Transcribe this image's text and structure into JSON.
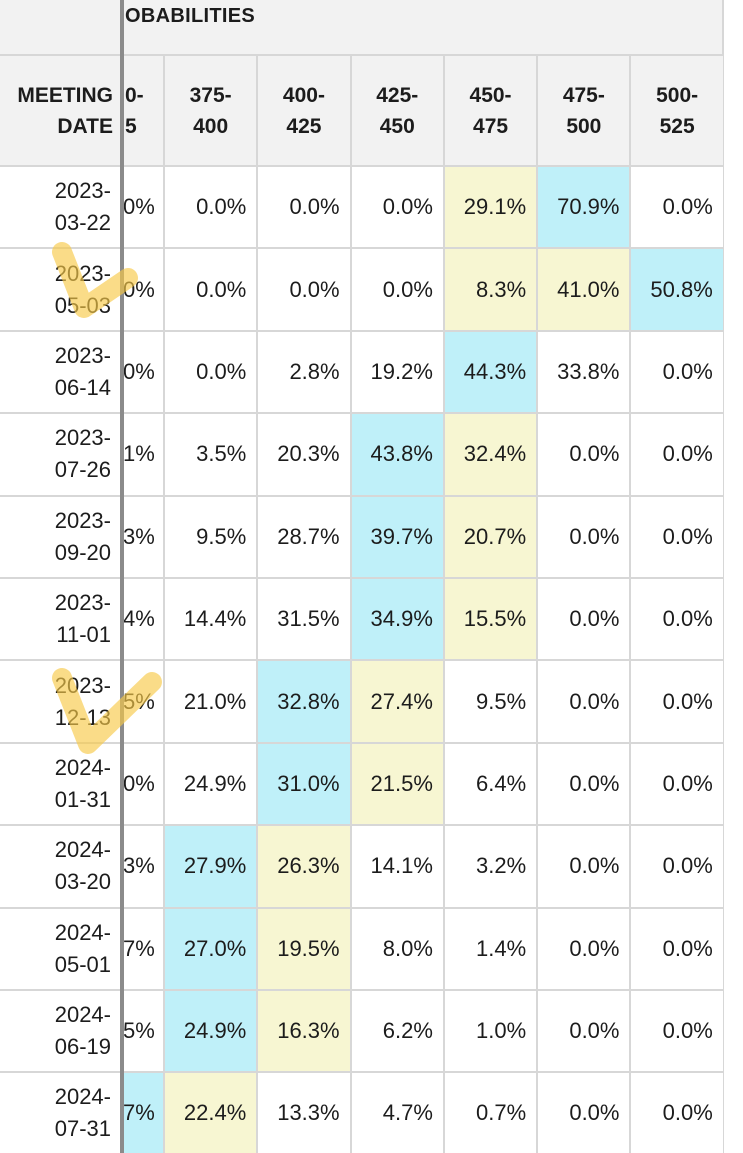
{
  "header": {
    "title_fragment": "OBABILITIES",
    "date_column": [
      "MEETING",
      "DATE"
    ],
    "clipped_column": [
      "0-",
      "5"
    ],
    "rate_columns": [
      [
        "375-",
        "400"
      ],
      [
        "400-",
        "425"
      ],
      [
        "425-",
        "450"
      ],
      [
        "450-",
        "475"
      ],
      [
        "475-",
        "500"
      ],
      [
        "500-",
        "525"
      ]
    ]
  },
  "rows": [
    {
      "date": [
        "2023-",
        "03-22"
      ],
      "clipped": "0%",
      "values": [
        "0.0%",
        "0.0%",
        "0.0%",
        "29.1%",
        "70.9%",
        "0.0%"
      ],
      "highlight": [
        "",
        "",
        "",
        "yellow",
        "blue",
        ""
      ],
      "clip_highlight": ""
    },
    {
      "date": [
        "2023-",
        "05-03"
      ],
      "clipped": "0%",
      "values": [
        "0.0%",
        "0.0%",
        "0.0%",
        "8.3%",
        "41.0%",
        "50.8%"
      ],
      "highlight": [
        "",
        "",
        "",
        "yellow",
        "yellow",
        "blue"
      ],
      "clip_highlight": ""
    },
    {
      "date": [
        "2023-",
        "06-14"
      ],
      "clipped": "0%",
      "values": [
        "0.0%",
        "2.8%",
        "19.2%",
        "44.3%",
        "33.8%",
        "0.0%"
      ],
      "highlight": [
        "",
        "",
        "",
        "blue",
        "",
        ""
      ],
      "clip_highlight": ""
    },
    {
      "date": [
        "2023-",
        "07-26"
      ],
      "clipped": "1%",
      "values": [
        "3.5%",
        "20.3%",
        "43.8%",
        "32.4%",
        "0.0%",
        "0.0%"
      ],
      "highlight": [
        "",
        "",
        "blue",
        "yellow",
        "",
        ""
      ],
      "clip_highlight": ""
    },
    {
      "date": [
        "2023-",
        "09-20"
      ],
      "clipped": "3%",
      "values": [
        "9.5%",
        "28.7%",
        "39.7%",
        "20.7%",
        "0.0%",
        "0.0%"
      ],
      "highlight": [
        "",
        "",
        "blue",
        "yellow",
        "",
        ""
      ],
      "clip_highlight": ""
    },
    {
      "date": [
        "2023-",
        "11-01"
      ],
      "clipped": "4%",
      "values": [
        "14.4%",
        "31.5%",
        "34.9%",
        "15.5%",
        "0.0%",
        "0.0%"
      ],
      "highlight": [
        "",
        "",
        "blue",
        "yellow",
        "",
        ""
      ],
      "clip_highlight": ""
    },
    {
      "date": [
        "2023-",
        "12-13"
      ],
      "clipped": "5%",
      "values": [
        "21.0%",
        "32.8%",
        "27.4%",
        "9.5%",
        "0.0%",
        "0.0%"
      ],
      "highlight": [
        "",
        "blue",
        "yellow",
        "",
        "",
        ""
      ],
      "clip_highlight": ""
    },
    {
      "date": [
        "2024-",
        "01-31"
      ],
      "clipped": "0%",
      "values": [
        "24.9%",
        "31.0%",
        "21.5%",
        "6.4%",
        "0.0%",
        "0.0%"
      ],
      "highlight": [
        "",
        "blue",
        "yellow",
        "",
        "",
        ""
      ],
      "clip_highlight": ""
    },
    {
      "date": [
        "2024-",
        "03-20"
      ],
      "clipped": "3%",
      "values": [
        "27.9%",
        "26.3%",
        "14.1%",
        "3.2%",
        "0.0%",
        "0.0%"
      ],
      "highlight": [
        "blue",
        "yellow",
        "",
        "",
        "",
        ""
      ],
      "clip_highlight": ""
    },
    {
      "date": [
        "2024-",
        "05-01"
      ],
      "clipped": "7%",
      "values": [
        "27.0%",
        "19.5%",
        "8.0%",
        "1.4%",
        "0.0%",
        "0.0%"
      ],
      "highlight": [
        "blue",
        "yellow",
        "",
        "",
        "",
        ""
      ],
      "clip_highlight": ""
    },
    {
      "date": [
        "2024-",
        "06-19"
      ],
      "clipped": "5%",
      "values": [
        "24.9%",
        "16.3%",
        "6.2%",
        "1.0%",
        "0.0%",
        "0.0%"
      ],
      "highlight": [
        "blue",
        "yellow",
        "",
        "",
        "",
        ""
      ],
      "clip_highlight": ""
    },
    {
      "date": [
        "2024-",
        "07-31"
      ],
      "clipped": "7%",
      "values": [
        "22.4%",
        "13.3%",
        "4.7%",
        "0.7%",
        "0.0%",
        "0.0%"
      ],
      "highlight": [
        "yellow",
        "",
        "",
        "",
        "",
        ""
      ],
      "clip_highlight": "blue"
    }
  ],
  "colors": {
    "highlight_blue": "#bff0f9",
    "highlight_yellow": "#f7f6d2",
    "header_bg": "#f2f2f2",
    "grid_line": "#d7d7d7",
    "freeze_divider": "#8b8b8b",
    "marker_stroke": "#f7c948"
  },
  "annotations": [
    {
      "type": "hand-drawn-checkmark",
      "near_row_date": "2023-05-03"
    },
    {
      "type": "hand-drawn-checkmark",
      "near_row_date": "2023-12-13"
    }
  ]
}
